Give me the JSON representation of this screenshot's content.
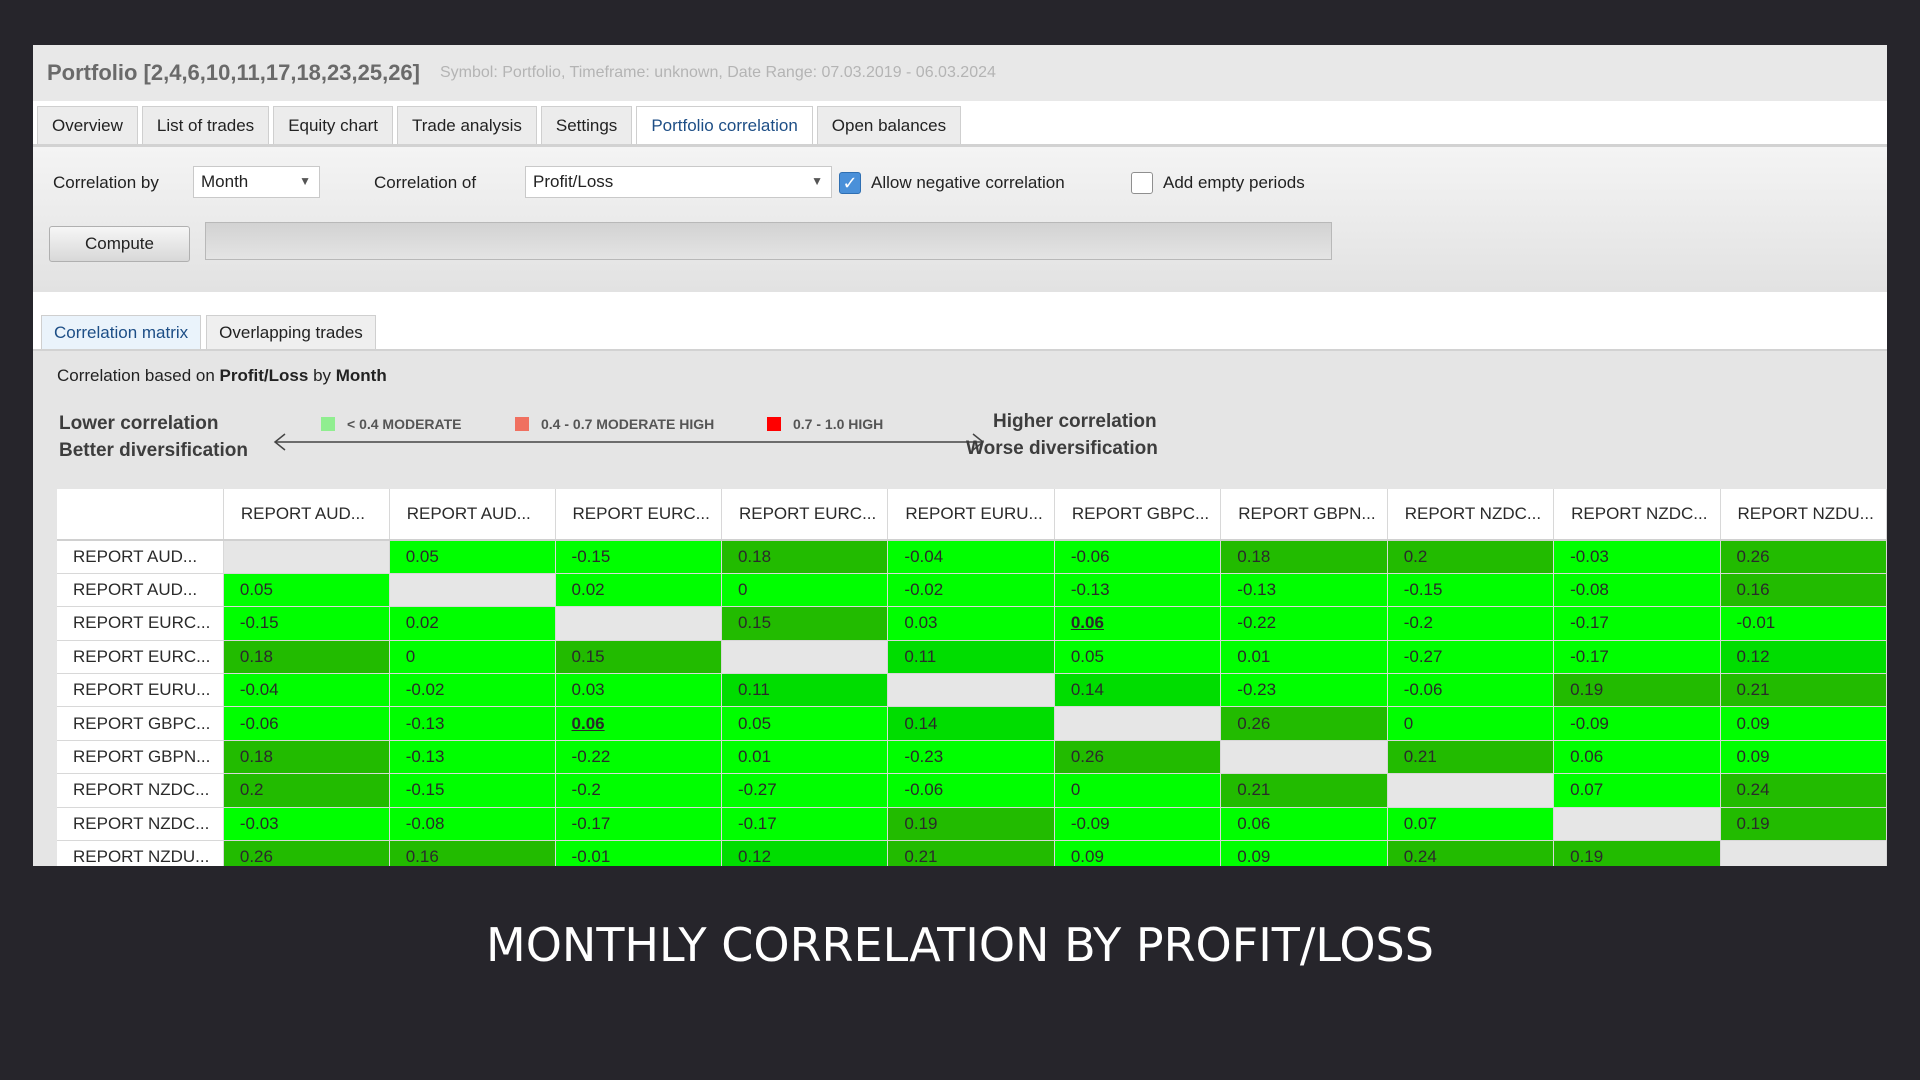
{
  "window": {
    "title": "Portfolio [2,4,6,10,11,17,18,23,25,26]",
    "subtitle": "Symbol: Portfolio, Timeframe: unknown, Date Range: 07.03.2019 - 06.03.2024"
  },
  "tabs": [
    "Overview",
    "List of trades",
    "Equity chart",
    "Trade analysis",
    "Settings",
    "Portfolio correlation",
    "Open balances"
  ],
  "active_tab": "Portfolio correlation",
  "controls": {
    "correlation_by_label": "Correlation by",
    "correlation_by_value": "Month",
    "correlation_of_label": "Correlation of",
    "correlation_of_value": "Profit/Loss",
    "allow_negative_label": "Allow negative correlation",
    "allow_negative_checked": true,
    "add_empty_label": "Add empty periods",
    "add_empty_checked": false,
    "compute_label": "Compute"
  },
  "subtabs": [
    "Correlation matrix",
    "Overlapping trades"
  ],
  "active_subtab": "Correlation matrix",
  "caption": {
    "prefix": "Correlation based on ",
    "metric": "Profit/Loss",
    "by_word": " by ",
    "period": "Month"
  },
  "legend": {
    "lower_line1": "Lower correlation",
    "lower_line2": "Better diversification",
    "higher_line1": "Higher correlation",
    "higher_line2": "Worse diversification",
    "items": [
      {
        "label": "< 0.4 MODERATE",
        "color": "#90ee90"
      },
      {
        "label": "0.4 - 0.7 MODERATE HIGH",
        "color": "#f07060"
      },
      {
        "label": "0.7 - 1.0 HIGH",
        "color": "#ff0000"
      }
    ]
  },
  "matrix": {
    "labels": [
      "REPORT AUD...",
      "REPORT AUD...",
      "REPORT EURC...",
      "REPORT EURC...",
      "REPORT EURU...",
      "REPORT GBPC...",
      "REPORT GBPN...",
      "REPORT NZDC...",
      "REPORT NZDC...",
      "REPORT NZDU..."
    ],
    "values": [
      [
        null,
        "0.05",
        "-0.15",
        "0.18",
        "-0.04",
        "-0.06",
        "0.18",
        "0.2",
        "-0.03",
        "0.26"
      ],
      [
        "0.05",
        null,
        "0.02",
        "0",
        "-0.02",
        "-0.13",
        "-0.13",
        "-0.15",
        "-0.08",
        "0.16"
      ],
      [
        "-0.15",
        "0.02",
        null,
        "0.15",
        "0.03",
        "0.06",
        "-0.22",
        "-0.2",
        "-0.17",
        "-0.01"
      ],
      [
        "0.18",
        "0",
        "0.15",
        null,
        "0.11",
        "0.05",
        "0.01",
        "-0.27",
        "-0.17",
        "0.12"
      ],
      [
        "-0.04",
        "-0.02",
        "0.03",
        "0.11",
        null,
        "0.14",
        "-0.23",
        "-0.06",
        "0.19",
        "0.21"
      ],
      [
        "-0.06",
        "-0.13",
        "0.06",
        "0.05",
        "0.14",
        null,
        "0.26",
        "0",
        "-0.09",
        "0.09"
      ],
      [
        "0.18",
        "-0.13",
        "-0.22",
        "0.01",
        "-0.23",
        "0.26",
        null,
        "0.21",
        "0.06",
        "0.09"
      ],
      [
        "0.2",
        "-0.15",
        "-0.2",
        "-0.27",
        "-0.06",
        "0",
        "0.21",
        null,
        "0.07",
        "0.24"
      ],
      [
        "-0.03",
        "-0.08",
        "-0.17",
        "-0.17",
        "0.19",
        "-0.09",
        "0.06",
        "0.07",
        null,
        "0.19"
      ],
      [
        "0.26",
        "0.16",
        "-0.01",
        "0.12",
        "0.21",
        "0.09",
        "0.09",
        "0.24",
        "0.19",
        null
      ]
    ],
    "highlighted_cells": [
      [
        2,
        5
      ],
      [
        5,
        2
      ]
    ],
    "colors": {
      "low": "#00ff00",
      "mid": "#00dd00",
      "high": "#22bb00",
      "diagonal": "#e6e6e6"
    }
  },
  "slide_caption": "MONTHLY CORRELATION BY PROFIT/LOSS"
}
